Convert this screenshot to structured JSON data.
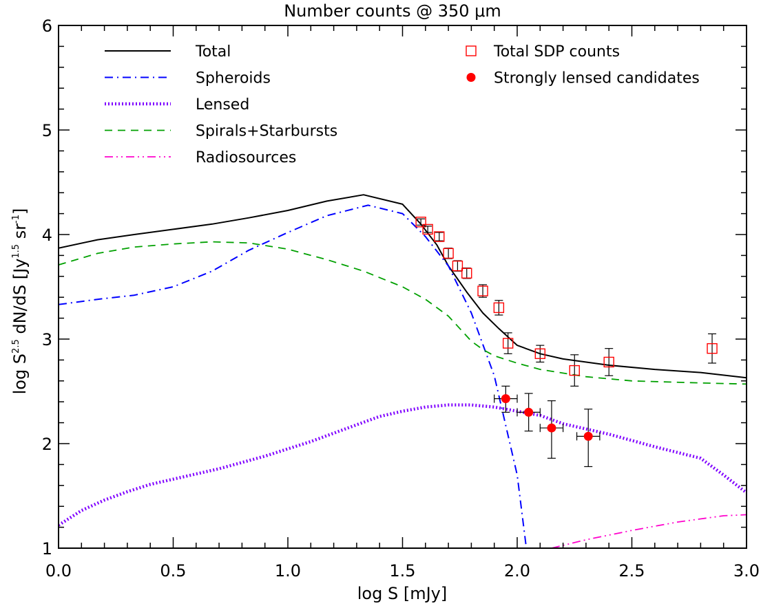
{
  "chart_data": {
    "type": "line",
    "title": "Number counts @ 350 μm",
    "xlabel": "log S [mJy]",
    "ylabel": {
      "base": "log S",
      "sup1": "2.5",
      "mid": " dN/dS [Jy",
      "sup2": "1.5",
      "mid2": " sr",
      "sup3": "-1",
      "end": "]"
    },
    "xlim": [
      0.0,
      3.0
    ],
    "ylim": [
      1,
      6
    ],
    "x_ticks": [
      {
        "value": 0.0,
        "label": "0.0"
      },
      {
        "value": 0.5,
        "label": "0.5"
      },
      {
        "value": 1.0,
        "label": "1.0"
      },
      {
        "value": 1.5,
        "label": "1.5"
      },
      {
        "value": 2.0,
        "label": "2.0"
      },
      {
        "value": 2.5,
        "label": "2.5"
      },
      {
        "value": 3.0,
        "label": "3.0"
      }
    ],
    "y_ticks": [
      {
        "value": 1,
        "label": "1"
      },
      {
        "value": 2,
        "label": "2"
      },
      {
        "value": 3,
        "label": "3"
      },
      {
        "value": 4,
        "label": "4"
      },
      {
        "value": 5,
        "label": "5"
      },
      {
        "value": 6,
        "label": "6"
      }
    ],
    "x_minor_step": 0.1,
    "y_minor_step": 0.2,
    "grid": false,
    "legend_placement": "top-left and top-right",
    "series": [
      {
        "name": "Total",
        "color": "#000000",
        "style": "solid",
        "x": [
          0.0,
          0.17,
          0.33,
          0.5,
          0.67,
          0.83,
          1.0,
          1.17,
          1.33,
          1.5,
          1.58,
          1.65,
          1.7,
          1.78,
          1.85,
          1.92,
          2.0,
          2.1,
          2.2,
          2.4,
          2.6,
          2.8,
          3.0
        ],
        "y": [
          3.87,
          3.95,
          4.0,
          4.05,
          4.1,
          4.16,
          4.23,
          4.32,
          4.38,
          4.29,
          4.1,
          3.9,
          3.7,
          3.45,
          3.25,
          3.1,
          2.94,
          2.86,
          2.81,
          2.75,
          2.71,
          2.68,
          2.63
        ]
      },
      {
        "name": "Spheroids",
        "color": "#0000ff",
        "style": "dash-dot",
        "x": [
          0.0,
          0.17,
          0.33,
          0.5,
          0.67,
          0.83,
          1.0,
          1.17,
          1.35,
          1.5,
          1.6,
          1.7,
          1.8,
          1.9,
          2.0,
          2.04
        ],
        "y": [
          3.33,
          3.38,
          3.42,
          3.5,
          3.65,
          3.85,
          4.02,
          4.18,
          4.28,
          4.2,
          3.98,
          3.7,
          3.25,
          2.65,
          1.7,
          1.0
        ]
      },
      {
        "name": "Lensed",
        "color": "#7f00ff",
        "style": "dotted",
        "x": [
          0.0,
          0.1,
          0.2,
          0.3,
          0.4,
          0.5,
          0.6,
          0.7,
          0.8,
          0.9,
          1.0,
          1.1,
          1.2,
          1.3,
          1.4,
          1.5,
          1.6,
          1.7,
          1.8,
          1.9,
          2.0,
          2.1,
          2.2,
          2.4,
          2.6,
          2.8,
          2.9,
          3.0
        ],
        "y": [
          1.22,
          1.36,
          1.46,
          1.54,
          1.61,
          1.66,
          1.71,
          1.76,
          1.82,
          1.88,
          1.95,
          2.02,
          2.1,
          2.18,
          2.26,
          2.31,
          2.35,
          2.37,
          2.37,
          2.35,
          2.31,
          2.27,
          2.19,
          2.09,
          1.97,
          1.86,
          1.7,
          1.53
        ]
      },
      {
        "name": "Spirals+Starbursts",
        "color": "#00a000",
        "style": "dashed",
        "x": [
          0.0,
          0.17,
          0.33,
          0.5,
          0.67,
          0.83,
          1.0,
          1.17,
          1.33,
          1.5,
          1.6,
          1.7,
          1.75,
          1.8,
          1.85,
          1.9,
          2.0,
          2.1,
          2.3,
          2.5,
          2.8,
          3.0
        ],
        "y": [
          3.71,
          3.82,
          3.88,
          3.91,
          3.93,
          3.92,
          3.86,
          3.76,
          3.65,
          3.5,
          3.38,
          3.22,
          3.1,
          2.98,
          2.9,
          2.84,
          2.77,
          2.71,
          2.64,
          2.6,
          2.58,
          2.57
        ]
      },
      {
        "name": "Radiosources",
        "color": "#ff00cc",
        "style": "dash-dot-dot",
        "x": [
          2.15,
          2.3,
          2.5,
          2.7,
          2.9,
          3.0
        ],
        "y": [
          1.0,
          1.08,
          1.17,
          1.25,
          1.31,
          1.32
        ]
      }
    ],
    "points": [
      {
        "name": "Total SDP counts",
        "marker": "open-square",
        "color": "#ff0000",
        "x": [
          1.58,
          1.61,
          1.66,
          1.7,
          1.74,
          1.78,
          1.85,
          1.92,
          1.96,
          2.1,
          2.25,
          2.4,
          2.85
        ],
        "y": [
          4.12,
          4.05,
          3.98,
          3.82,
          3.7,
          3.63,
          3.46,
          3.3,
          2.96,
          2.86,
          2.7,
          2.78,
          2.91
        ],
        "yerr": [
          0.03,
          0.03,
          0.04,
          0.05,
          0.05,
          0.05,
          0.06,
          0.07,
          0.1,
          0.08,
          0.15,
          0.13,
          0.14
        ]
      },
      {
        "name": "Strongly lensed candidates",
        "marker": "filled-circle",
        "color": "#ff0000",
        "x": [
          1.95,
          2.05,
          2.15,
          2.31
        ],
        "y": [
          2.43,
          2.3,
          2.15,
          2.07
        ],
        "xerr": [
          0.05,
          0.05,
          0.05,
          0.05
        ],
        "yerr_low": [
          0.13,
          0.18,
          0.29,
          0.29
        ],
        "yerr_high": [
          0.12,
          0.18,
          0.26,
          0.26
        ]
      }
    ],
    "legend": {
      "left": [
        "Total",
        "Spheroids",
        "Lensed",
        "Spirals+Starbursts",
        "Radiosources"
      ],
      "right": [
        "Total SDP counts",
        "Strongly lensed candidates"
      ]
    }
  }
}
